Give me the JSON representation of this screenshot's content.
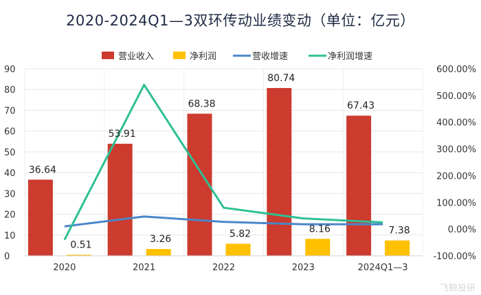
{
  "chart_data": {
    "type": "bar",
    "title": "2020-2024Q1—3双环传动业绩变动（单位：亿元）",
    "categories": [
      "2020",
      "2021",
      "2022",
      "2023",
      "2024Q1—3"
    ],
    "series": [
      {
        "name": "营业收入",
        "kind": "bar",
        "axis": "left",
        "color": "#cc3b2e",
        "values": [
          36.64,
          53.91,
          68.38,
          80.74,
          67.43
        ],
        "labels": [
          "36.64",
          "53.91",
          "68.38",
          "80.74",
          "67.43"
        ]
      },
      {
        "name": "净利润",
        "kind": "bar",
        "axis": "left",
        "color": "#ffc000",
        "values": [
          0.51,
          3.26,
          5.82,
          8.16,
          7.38
        ],
        "labels": [
          "0.51",
          "3.26",
          "5.82",
          "8.16",
          "7.38"
        ]
      },
      {
        "name": "营收增速",
        "kind": "line",
        "axis": "right",
        "color": "#4a86c8",
        "values": [
          10,
          47,
          27,
          18,
          18
        ]
      },
      {
        "name": "净利润增速",
        "kind": "line",
        "axis": "right",
        "color": "#2dbf94",
        "values": [
          -40,
          540,
          80,
          40,
          25
        ]
      }
    ],
    "y_left": {
      "min": 0,
      "max": 90,
      "ticks": [
        "0",
        "10",
        "20",
        "30",
        "40",
        "50",
        "60",
        "70",
        "80",
        "90"
      ]
    },
    "y_right": {
      "min": -100,
      "max": 600,
      "ticks": [
        "-100.00%",
        "0.00%",
        "100.00%",
        "200.00%",
        "300.00%",
        "400.00%",
        "500.00%",
        "600.00%"
      ]
    },
    "legend_position": "top",
    "grid": true
  },
  "watermark": "飞鲸投研"
}
